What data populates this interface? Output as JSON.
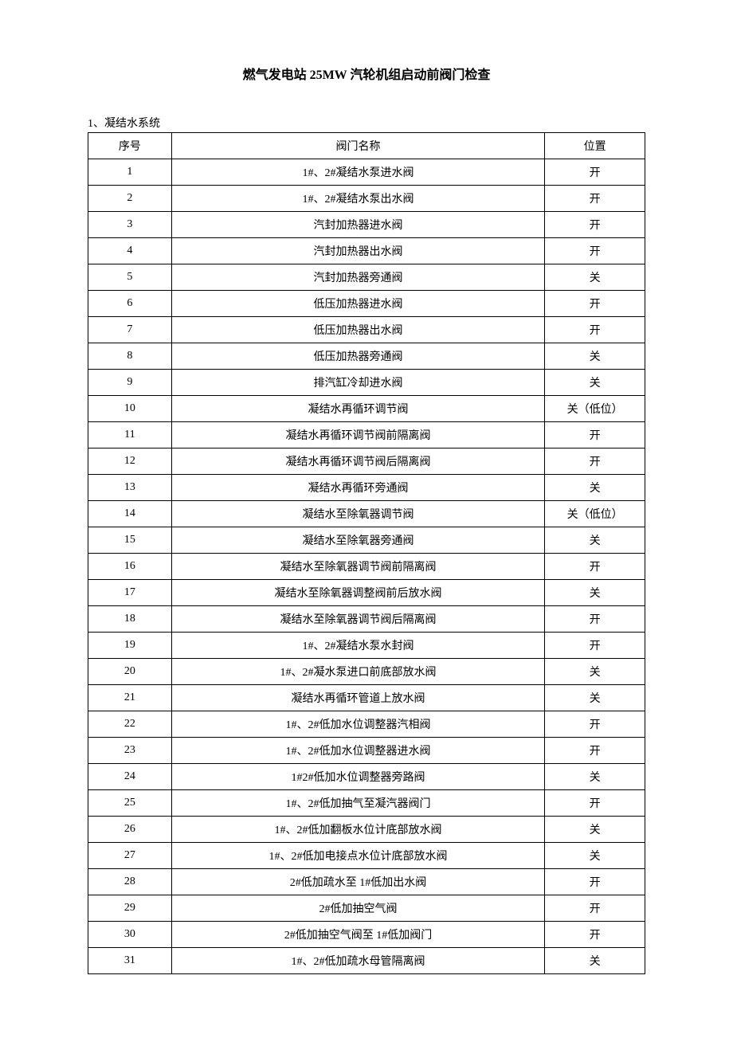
{
  "title": "燃气发电站 25MW 汽轮机组启动前阀门检查",
  "section": "1、凝结水系统",
  "table": {
    "headers": {
      "seq": "序号",
      "name": "阀门名称",
      "pos": "位置"
    },
    "rows": [
      {
        "seq": "1",
        "name": "1#、2#凝结水泵进水阀",
        "pos": "开"
      },
      {
        "seq": "2",
        "name": "1#、2#凝结水泵出水阀",
        "pos": "开"
      },
      {
        "seq": "3",
        "name": "汽封加热器进水阀",
        "pos": "开"
      },
      {
        "seq": "4",
        "name": "汽封加热器出水阀",
        "pos": "开"
      },
      {
        "seq": "5",
        "name": "汽封加热器旁通阀",
        "pos": "关"
      },
      {
        "seq": "6",
        "name": "低压加热器进水阀",
        "pos": "开"
      },
      {
        "seq": "7",
        "name": "低压加热器出水阀",
        "pos": "开"
      },
      {
        "seq": "8",
        "name": "低压加热器旁通阀",
        "pos": "关"
      },
      {
        "seq": "9",
        "name": "排汽缸冷却进水阀",
        "pos": "关"
      },
      {
        "seq": "10",
        "name": "凝结水再循环调节阀",
        "pos": "关（低位）"
      },
      {
        "seq": "11",
        "name": "凝结水再循环调节阀前隔离阀",
        "pos": "开"
      },
      {
        "seq": "12",
        "name": "凝结水再循环调节阀后隔离阀",
        "pos": "开"
      },
      {
        "seq": "13",
        "name": "凝结水再循环旁通阀",
        "pos": "关"
      },
      {
        "seq": "14",
        "name": "凝结水至除氧器调节阀",
        "pos": "关（低位）"
      },
      {
        "seq": "15",
        "name": "凝结水至除氧器旁通阀",
        "pos": "关"
      },
      {
        "seq": "16",
        "name": "凝结水至除氧器调节阀前隔离阀",
        "pos": "开"
      },
      {
        "seq": "17",
        "name": "凝结水至除氧器调整阀前后放水阀",
        "pos": "关"
      },
      {
        "seq": "18",
        "name": "凝结水至除氧器调节阀后隔离阀",
        "pos": "开"
      },
      {
        "seq": "19",
        "name": "1#、2#凝结水泵水封阀",
        "pos": "开"
      },
      {
        "seq": "20",
        "name": "1#、2#凝水泵进口前底部放水阀",
        "pos": "关"
      },
      {
        "seq": "21",
        "name": "凝结水再循环管道上放水阀",
        "pos": "关"
      },
      {
        "seq": "22",
        "name": "1#、2#低加水位调整器汽相阀",
        "pos": "开"
      },
      {
        "seq": "23",
        "name": "1#、2#低加水位调整器进水阀",
        "pos": "开"
      },
      {
        "seq": "24",
        "name": "1#2#低加水位调整器旁路阀",
        "pos": "关"
      },
      {
        "seq": "25",
        "name": "1#、2#低加抽气至凝汽器阀门",
        "pos": "开"
      },
      {
        "seq": "26",
        "name": "1#、2#低加翻板水位计底部放水阀",
        "pos": "关"
      },
      {
        "seq": "27",
        "name": "1#、2#低加电接点水位计底部放水阀",
        "pos": "关"
      },
      {
        "seq": "28",
        "name": "2#低加疏水至 1#低加出水阀",
        "pos": "开"
      },
      {
        "seq": "29",
        "name": "2#低加抽空气阀",
        "pos": "开"
      },
      {
        "seq": "30",
        "name": "2#低加抽空气阀至 1#低加阀门",
        "pos": "开"
      },
      {
        "seq": "31",
        "name": "1#、2#低加疏水母管隔离阀",
        "pos": "关"
      }
    ]
  }
}
